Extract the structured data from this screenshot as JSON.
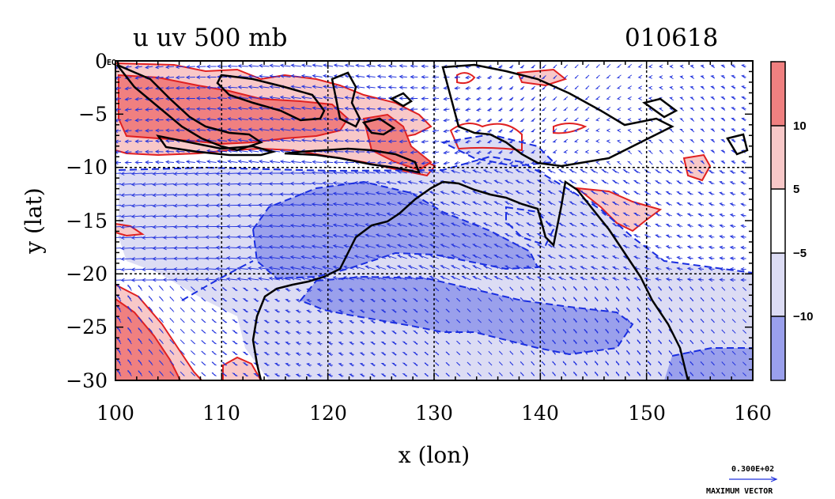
{
  "title_left": "u uv 500 mb",
  "title_right": "010618",
  "corner_label": "EQ",
  "x_axis": {
    "label": "x (lon)",
    "ticks": [
      "100",
      "110",
      "120",
      "130",
      "140",
      "150",
      "160"
    ]
  },
  "y_axis": {
    "label": "y (lat)",
    "ticks": [
      "0",
      "−5",
      "−10",
      "−15",
      "−20",
      "−25",
      "−30"
    ]
  },
  "colorbar": {
    "labels": [
      "10",
      "5",
      "−5",
      "−10"
    ],
    "colors": [
      "#f08080",
      "#f8c8c8",
      "#ffffff",
      "#dcdcf4",
      "#9aa0ec"
    ]
  },
  "vector_key": {
    "value": "0.300E+02",
    "label": "MAXIMUM VECTOR"
  },
  "colors": {
    "positive_contour": "#e02020",
    "negative_contour": "#1a2ee0",
    "vector": "#2233dd",
    "coast": "#000000"
  }
}
